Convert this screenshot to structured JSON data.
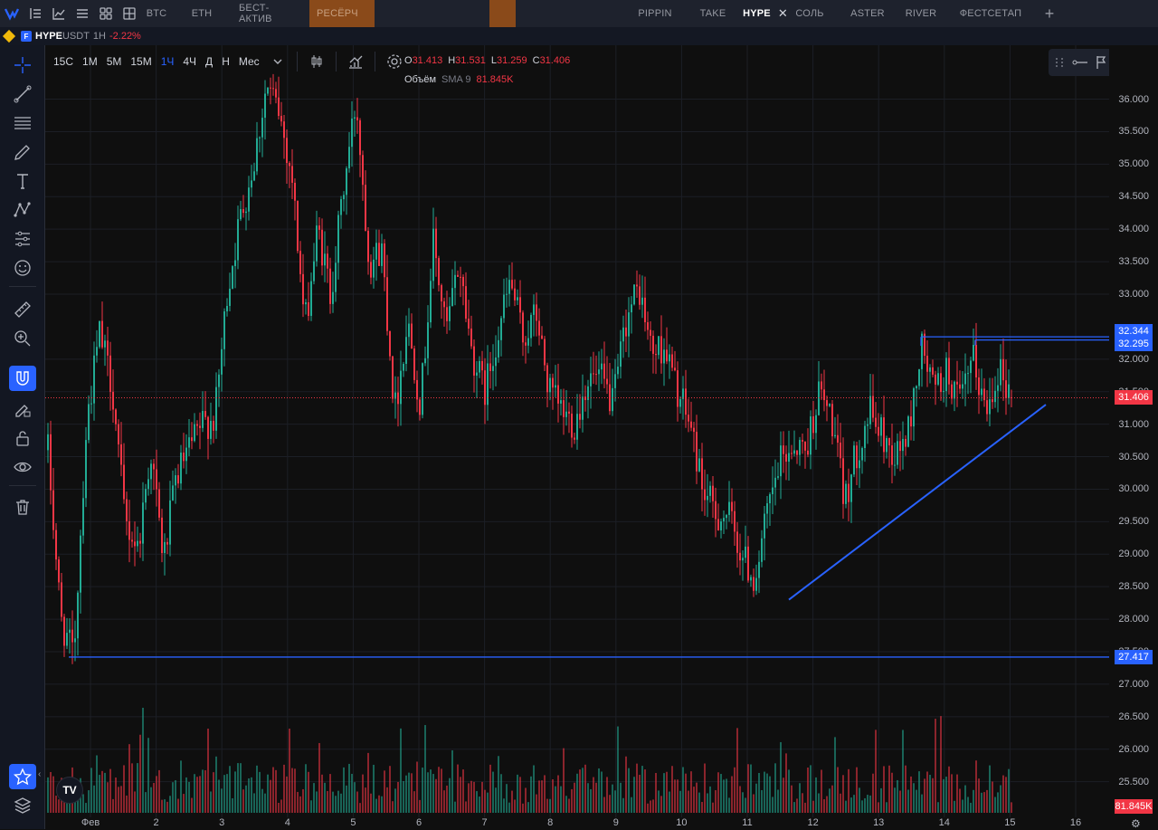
{
  "topbar": {
    "icons": [
      "logo-icon",
      "chart-list-icon",
      "line-chart-icon",
      "watchlist-icon",
      "grid-icon",
      "layout-icon"
    ],
    "tabs": [
      {
        "label": "BTC",
        "style": "normal"
      },
      {
        "label": "ETH",
        "style": "normal"
      },
      {
        "label": "БЕСТ-АКТИВ",
        "style": "normal"
      },
      {
        "label": "РЕСЁРЧ",
        "style": "orange"
      },
      {
        "label": "",
        "style": "orange-blank"
      },
      {
        "label": "PIPPIN",
        "style": "normal"
      },
      {
        "label": "TAKE",
        "style": "normal"
      },
      {
        "label": "HYPE",
        "style": "active"
      },
      {
        "label": "СОЛЬ",
        "style": "normal"
      },
      {
        "label": "ASTER",
        "style": "normal"
      },
      {
        "label": "RIVER",
        "style": "normal"
      },
      {
        "label": "ФЕСТСЕТАП",
        "style": "normal"
      }
    ],
    "close_glyph": "✕",
    "add_glyph": "+"
  },
  "infobar": {
    "symbol": "HYPE",
    "quote": "USDT",
    "timeframe": "1H",
    "change": "-2.22%"
  },
  "toolbar": {
    "intervals": [
      "15С",
      "1М",
      "5М",
      "15М",
      "1Ч",
      "4Ч",
      "Д",
      "Н",
      "Мес"
    ],
    "active_interval": "1Ч"
  },
  "ohlc": {
    "o_label": "O",
    "o": "31.413",
    "h_label": "H",
    "h": "31.531",
    "l_label": "L",
    "l": "31.259",
    "c_label": "C",
    "c": "31.406"
  },
  "volume_row": {
    "label": "Объём",
    "indicator": "SMA 9",
    "value": "81.845K"
  },
  "price_axis": {
    "labels": [
      "36.000",
      "35.500",
      "35.000",
      "34.500",
      "34.000",
      "33.500",
      "33.000",
      "32.000",
      "31.500",
      "31.000",
      "30.500",
      "30.000",
      "29.500",
      "29.000",
      "28.500",
      "28.000",
      "27.500",
      "27.000",
      "26.500",
      "26.000",
      "25.500"
    ],
    "tags": [
      {
        "value": "32.344",
        "color": "#2962ff"
      },
      {
        "value": "32.295",
        "color": "#2962ff"
      },
      {
        "value": "31.406",
        "color": "#f23645"
      },
      {
        "value": "27.417",
        "color": "#2962ff"
      },
      {
        "value": "81.845K",
        "color": "#f23645"
      }
    ]
  },
  "time_axis": {
    "labels": [
      "Фев",
      "2",
      "3",
      "4",
      "5",
      "6",
      "7",
      "8",
      "9",
      "10",
      "11",
      "12",
      "13",
      "14",
      "15",
      "16"
    ]
  },
  "colors": {
    "up": "#22ab94",
    "down": "#f23645",
    "drawing": "#2962ff",
    "background": "#0f0f0f"
  },
  "chart_data": {
    "type": "candlestick",
    "symbol": "HYPEUSDT",
    "interval": "1H",
    "ylim": [
      25.3,
      36.3
    ],
    "last_price": 31.406,
    "price_path": [
      30.6,
      28.0,
      27.4,
      31.0,
      32.4,
      31.6,
      29.5,
      29.1,
      30.6,
      28.9,
      30.2,
      30.6,
      31.0,
      31.1,
      33.1,
      34.2,
      35.0,
      36.2,
      35.8,
      34.8,
      32.5,
      34.0,
      33.0,
      34.6,
      36.0,
      33.5,
      33.7,
      31.2,
      32.6,
      31.3,
      33.8,
      32.4,
      33.5,
      32.1,
      31.5,
      32.4,
      33.2,
      32.3,
      32.7,
      31.5,
      31.2,
      31.0,
      31.7,
      31.7,
      31.3,
      32.6,
      33.1,
      32.1,
      32.2,
      31.5,
      31.0,
      30.0,
      29.6,
      29.6,
      29.0,
      28.6,
      29.6,
      30.4,
      30.7,
      30.6,
      31.5,
      31.1,
      29.8,
      30.6,
      31.2,
      30.8,
      30.5,
      30.9,
      32.2,
      31.5,
      31.8,
      31.3,
      32.0,
      31.2,
      31.9,
      31.4
    ],
    "drawings": [
      {
        "type": "horizontal",
        "price": 27.417
      },
      {
        "type": "horizontal",
        "price": 32.344
      },
      {
        "type": "horizontal",
        "price": 32.295
      },
      {
        "type": "trendline",
        "start_price": 28.3,
        "end_price": 31.3
      }
    ]
  }
}
